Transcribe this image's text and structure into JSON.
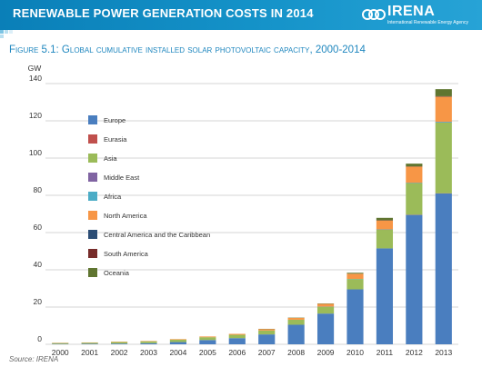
{
  "header": {
    "title": "RENEWABLE POWER GENERATION COSTS IN 2014",
    "logo_name": "IRENA",
    "logo_subtitle": "International Renewable Energy Agency"
  },
  "figure": {
    "title": "Figure 5.1: Global cumulative installed solar photovoltaic capacity, 2000-2014"
  },
  "source": "Source: IRENA",
  "colors": {
    "header": "#1593c9",
    "figure_title": "#1f87bf"
  },
  "chart_data": {
    "type": "bar",
    "stacked": true,
    "ylabel": "GW",
    "ylim": [
      0,
      140
    ],
    "yticks": [
      0,
      20,
      40,
      60,
      80,
      100,
      120,
      140
    ],
    "grid": true,
    "legend_position": "inside-left",
    "categories": [
      "2000",
      "2001",
      "2002",
      "2003",
      "2004",
      "2005",
      "2006",
      "2007",
      "2008",
      "2009",
      "2010",
      "2011",
      "2012",
      "2013"
    ],
    "series": [
      {
        "name": "Europe",
        "color": "#4a7ebf",
        "values": [
          0.2,
          0.3,
          0.4,
          0.6,
          1.2,
          2.3,
          3.3,
          5.3,
          10.5,
          16.5,
          29.5,
          51.5,
          69.5,
          81.0
        ]
      },
      {
        "name": "Eurasia",
        "color": "#c0504d",
        "values": [
          0,
          0,
          0,
          0,
          0,
          0,
          0,
          0,
          0,
          0,
          0,
          0,
          0.1,
          0.1
        ]
      },
      {
        "name": "Asia",
        "color": "#9bbb59",
        "values": [
          0.5,
          0.6,
          0.8,
          1.0,
          1.3,
          1.5,
          1.8,
          2.1,
          2.7,
          3.6,
          5.5,
          10.0,
          17.0,
          38.0
        ]
      },
      {
        "name": "Middle East",
        "color": "#8064a2",
        "values": [
          0,
          0,
          0,
          0,
          0,
          0,
          0,
          0,
          0,
          0,
          0,
          0.1,
          0.1,
          0.1
        ]
      },
      {
        "name": "Africa",
        "color": "#4bacc6",
        "values": [
          0,
          0,
          0,
          0,
          0,
          0,
          0,
          0,
          0,
          0.1,
          0.1,
          0.1,
          0.1,
          0.3
        ]
      },
      {
        "name": "North America",
        "color": "#f79646",
        "values": [
          0.1,
          0.1,
          0.2,
          0.2,
          0.3,
          0.4,
          0.5,
          0.8,
          1.0,
          1.5,
          2.8,
          4.8,
          8.6,
          13.5
        ]
      },
      {
        "name": "Central America and the Caribbean",
        "color": "#2c4d75",
        "values": [
          0,
          0,
          0,
          0,
          0,
          0,
          0,
          0,
          0,
          0,
          0,
          0,
          0,
          0.1
        ]
      },
      {
        "name": "South America",
        "color": "#772c2a",
        "values": [
          0,
          0,
          0,
          0,
          0,
          0,
          0,
          0,
          0,
          0,
          0,
          0.1,
          0.1,
          0.1
        ]
      },
      {
        "name": "Oceania",
        "color": "#5f7530",
        "values": [
          0,
          0,
          0,
          0,
          0,
          0,
          0,
          0.1,
          0.1,
          0.2,
          0.5,
          1.3,
          1.5,
          3.8
        ]
      }
    ]
  }
}
